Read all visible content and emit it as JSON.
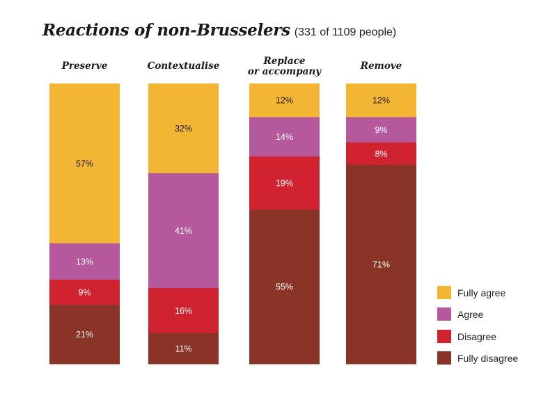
{
  "chart_data": {
    "type": "bar",
    "stacked": true,
    "orientation": "vertical",
    "title": "Reactions of non-Brusselers",
    "subtitle": "(331 of 1109 people)",
    "categories": [
      "Preserve",
      "Contextualise",
      "Replace or accompany",
      "Remove"
    ],
    "category_lines": [
      [
        "Preserve"
      ],
      [
        "Contextualise"
      ],
      [
        "Replace",
        "or accompany"
      ],
      [
        "Remove"
      ]
    ],
    "series": [
      {
        "name": "Fully agree",
        "color": "#f2b534",
        "label_color": "#1a1a1a",
        "values": [
          57,
          32,
          12,
          12
        ]
      },
      {
        "name": "Agree",
        "color": "#b5599c",
        "label_color": "#ffffff",
        "values": [
          13,
          41,
          14,
          9
        ]
      },
      {
        "name": "Disagree",
        "color": "#d0232f",
        "label_color": "#ffffff",
        "values": [
          9,
          16,
          19,
          8
        ]
      },
      {
        "name": "Fully disagree",
        "color": "#8a3327",
        "label_color": "#ffffff",
        "values": [
          21,
          11,
          55,
          71
        ]
      }
    ],
    "value_suffix": "%",
    "xlabel": "",
    "ylabel": "",
    "ylim": [
      0,
      100
    ],
    "grid": false,
    "legend_position": "bottom-right"
  }
}
